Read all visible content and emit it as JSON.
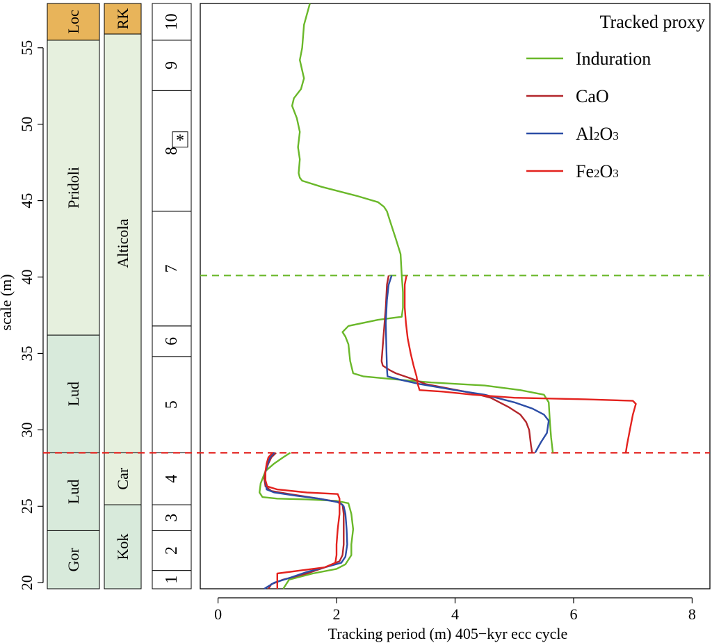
{
  "chart_data": {
    "type": "line",
    "xlabel": "Tracking period (m) 405−kyr ecc cycle",
    "ylabel": "scale (m)",
    "xlim": [
      -0.3,
      8.3
    ],
    "ylim": [
      19.6,
      57.9
    ],
    "x_ticks": [
      "0",
      "2",
      "4",
      "6",
      "8"
    ],
    "y_ticks": [
      "20",
      "25",
      "30",
      "35",
      "40",
      "45",
      "50",
      "55"
    ],
    "legend": {
      "title": "Tracked proxy",
      "placement": "top-right",
      "entries": [
        {
          "label": "Induration",
          "sub": "",
          "color": "#6ab82a"
        },
        {
          "label": "CaO",
          "sub": "",
          "color": "#b3262b"
        },
        {
          "label": "Al",
          "sub": "2",
          "label2": "O",
          "sub2": "3",
          "color": "#2c4da6"
        },
        {
          "label": "Fe",
          "sub": "2",
          "label2": "O",
          "sub2": "3",
          "color": "#e3221e"
        }
      ]
    },
    "reference_lines": [
      {
        "y": 40.1,
        "color": "#6ab82a",
        "style": "dashed"
      },
      {
        "y": 28.5,
        "color": "#e3221e",
        "style": "dashed"
      }
    ],
    "series": [
      {
        "name": "Induration",
        "color": "#6ab82a",
        "points": [
          [
            1.55,
            57.9
          ],
          [
            1.45,
            56.5
          ],
          [
            1.42,
            55.0
          ],
          [
            1.38,
            54.2
          ],
          [
            1.45,
            53.0
          ],
          [
            1.4,
            52.3
          ],
          [
            1.28,
            51.7
          ],
          [
            1.25,
            51.2
          ],
          [
            1.33,
            50.4
          ],
          [
            1.38,
            49.5
          ],
          [
            1.35,
            48.5
          ],
          [
            1.38,
            47.7
          ],
          [
            1.36,
            46.8
          ],
          [
            1.38,
            46.5
          ],
          [
            1.42,
            46.3
          ],
          [
            1.75,
            45.9
          ],
          [
            2.35,
            45.3
          ],
          [
            2.7,
            44.9
          ],
          [
            2.8,
            44.6
          ],
          [
            2.85,
            44.3
          ],
          [
            2.9,
            43.7
          ],
          [
            3.0,
            42.5
          ],
          [
            3.08,
            41.5
          ],
          [
            3.1,
            40.1
          ],
          [
            3.12,
            39.0
          ],
          [
            3.12,
            38.0
          ],
          [
            3.1,
            37.4
          ],
          [
            2.7,
            37.2
          ],
          [
            2.2,
            36.8
          ],
          [
            2.1,
            36.4
          ],
          [
            2.15,
            36.1
          ],
          [
            2.2,
            35.6
          ],
          [
            2.23,
            34.5
          ],
          [
            2.28,
            33.7
          ],
          [
            2.45,
            33.5
          ],
          [
            3.0,
            33.3
          ],
          [
            3.6,
            33.1
          ],
          [
            4.5,
            32.9
          ],
          [
            5.1,
            32.6
          ],
          [
            5.5,
            32.3
          ],
          [
            5.58,
            31.8
          ],
          [
            5.6,
            30.5
          ],
          [
            5.62,
            29.5
          ],
          [
            5.65,
            28.5
          ]
        ]
      },
      {
        "name": "Induration",
        "color": "#6ab82a",
        "points": [
          [
            1.22,
            28.5
          ],
          [
            1.1,
            28.2
          ],
          [
            0.95,
            27.8
          ],
          [
            0.8,
            27.3
          ],
          [
            0.72,
            26.5
          ],
          [
            0.7,
            25.9
          ],
          [
            0.75,
            25.6
          ],
          [
            1.0,
            25.5
          ],
          [
            1.5,
            25.45
          ],
          [
            2.0,
            25.35
          ],
          [
            2.2,
            25.2
          ],
          [
            2.25,
            24.5
          ],
          [
            2.28,
            23.5
          ],
          [
            2.25,
            22.5
          ],
          [
            2.25,
            21.8
          ],
          [
            2.15,
            21.2
          ],
          [
            2.0,
            20.9
          ],
          [
            1.6,
            20.6
          ],
          [
            1.2,
            20.2
          ],
          [
            1.1,
            19.6
          ]
        ]
      },
      {
        "name": "CaO",
        "color": "#b3262b",
        "points": [
          [
            2.88,
            40.1
          ],
          [
            2.85,
            39.5
          ],
          [
            2.83,
            38.0
          ],
          [
            2.8,
            36.5
          ],
          [
            2.78,
            35.5
          ],
          [
            2.76,
            34.5
          ],
          [
            2.78,
            34.2
          ],
          [
            2.9,
            33.9
          ],
          [
            3.0,
            33.7
          ],
          [
            3.3,
            33.3
          ],
          [
            3.5,
            33.0
          ],
          [
            3.9,
            32.7
          ],
          [
            4.3,
            32.4
          ],
          [
            4.6,
            32.1
          ],
          [
            4.9,
            31.5
          ],
          [
            5.1,
            31.0
          ],
          [
            5.2,
            30.5
          ],
          [
            5.25,
            30.0
          ],
          [
            5.28,
            29.0
          ],
          [
            5.3,
            28.5
          ]
        ]
      },
      {
        "name": "CaO",
        "color": "#b3262b",
        "points": [
          [
            0.98,
            28.5
          ],
          [
            0.9,
            28.2
          ],
          [
            0.85,
            27.8
          ],
          [
            0.8,
            27.3
          ],
          [
            0.78,
            26.8
          ],
          [
            0.8,
            26.3
          ],
          [
            0.9,
            26.0
          ],
          [
            1.2,
            25.8
          ],
          [
            1.7,
            25.5
          ],
          [
            2.0,
            25.3
          ],
          [
            2.1,
            25.1
          ],
          [
            2.12,
            24.5
          ],
          [
            2.12,
            23.5
          ],
          [
            2.12,
            22.5
          ],
          [
            2.1,
            21.8
          ],
          [
            2.05,
            21.4
          ],
          [
            1.8,
            21.0
          ],
          [
            1.5,
            20.6
          ],
          [
            1.1,
            20.2
          ],
          [
            0.9,
            19.9
          ],
          [
            0.85,
            19.6
          ]
        ]
      },
      {
        "name": "Al₂O₃",
        "color": "#2c4da6",
        "points": [
          [
            2.93,
            40.1
          ],
          [
            2.88,
            39.5
          ],
          [
            2.85,
            38.5
          ],
          [
            2.83,
            37.0
          ],
          [
            2.84,
            35.5
          ],
          [
            2.85,
            34.0
          ],
          [
            2.86,
            33.5
          ],
          [
            3.05,
            33.3
          ],
          [
            3.4,
            33.0
          ],
          [
            4.0,
            32.6
          ],
          [
            4.5,
            32.3
          ],
          [
            5.0,
            31.8
          ],
          [
            5.3,
            31.4
          ],
          [
            5.5,
            31.0
          ],
          [
            5.58,
            30.6
          ],
          [
            5.55,
            29.8
          ],
          [
            5.45,
            29.2
          ],
          [
            5.35,
            28.5
          ]
        ]
      },
      {
        "name": "Al₂O₃",
        "color": "#2c4da6",
        "points": [
          [
            0.95,
            28.5
          ],
          [
            0.88,
            28.2
          ],
          [
            0.83,
            27.7
          ],
          [
            0.8,
            27.2
          ],
          [
            0.8,
            26.6
          ],
          [
            0.82,
            26.1
          ],
          [
            0.95,
            25.9
          ],
          [
            1.3,
            25.7
          ],
          [
            1.7,
            25.5
          ],
          [
            2.05,
            25.25
          ],
          [
            2.12,
            25.0
          ],
          [
            2.15,
            24.5
          ],
          [
            2.17,
            23.5
          ],
          [
            2.18,
            22.5
          ],
          [
            2.15,
            21.7
          ],
          [
            2.08,
            21.3
          ],
          [
            1.8,
            21.0
          ],
          [
            1.5,
            20.7
          ],
          [
            1.2,
            20.3
          ],
          [
            0.95,
            20.0
          ],
          [
            0.78,
            19.6
          ]
        ]
      },
      {
        "name": "Fe₂O₃",
        "color": "#e3221e",
        "points": [
          [
            3.18,
            40.1
          ],
          [
            3.15,
            39.5
          ],
          [
            3.15,
            38.0
          ],
          [
            3.17,
            37.0
          ],
          [
            3.2,
            36.0
          ],
          [
            3.25,
            35.0
          ],
          [
            3.3,
            34.2
          ],
          [
            3.35,
            33.5
          ],
          [
            3.37,
            33.0
          ],
          [
            3.4,
            32.6
          ],
          [
            3.8,
            32.5
          ],
          [
            4.3,
            32.3
          ],
          [
            5.0,
            32.1
          ],
          [
            6.2,
            32.0
          ],
          [
            7.0,
            31.9
          ],
          [
            7.05,
            31.7
          ],
          [
            7.0,
            31.0
          ],
          [
            6.95,
            30.0
          ],
          [
            6.9,
            29.0
          ],
          [
            6.88,
            28.5
          ]
        ]
      },
      {
        "name": "Fe₂O₃",
        "color": "#e3221e",
        "points": [
          [
            0.92,
            28.5
          ],
          [
            0.85,
            28.2
          ],
          [
            0.82,
            27.8
          ],
          [
            0.8,
            27.3
          ],
          [
            0.8,
            26.7
          ],
          [
            0.83,
            26.3
          ],
          [
            1.0,
            26.1
          ],
          [
            1.5,
            25.9
          ],
          [
            2.02,
            25.8
          ],
          [
            2.05,
            25.5
          ],
          [
            2.05,
            24.5
          ],
          [
            2.02,
            23.5
          ],
          [
            2.0,
            22.5
          ],
          [
            2.0,
            21.8
          ],
          [
            1.98,
            21.3
          ],
          [
            1.8,
            21.0
          ],
          [
            1.4,
            20.8
          ],
          [
            1.0,
            20.6
          ],
          [
            1.0,
            20.3
          ],
          [
            1.0,
            19.6
          ]
        ]
      }
    ]
  },
  "strat_columns": [
    {
      "name": "series",
      "units": [
        {
          "label": "Gor",
          "bottom": 19.6,
          "top": 23.4,
          "color": "#d8eadb"
        },
        {
          "label": "Lud",
          "bottom": 23.4,
          "top": 28.5,
          "color": "#d8eadb"
        },
        {
          "label": "Lud",
          "bottom": 28.5,
          "top": 36.2,
          "color": "#d8eadb"
        },
        {
          "label": "Pridoli",
          "bottom": 36.2,
          "top": 55.5,
          "color": "#e6f0de"
        },
        {
          "label": "Loc",
          "bottom": 55.5,
          "top": 57.9,
          "color": "#e8b45a"
        }
      ]
    },
    {
      "name": "biozone",
      "units": [
        {
          "label": "Kok",
          "bottom": 19.6,
          "top": 25.1,
          "color": "#d8eadb"
        },
        {
          "label": "Car",
          "bottom": 25.1,
          "top": 28.5,
          "color": "#e6f0de"
        },
        {
          "label": "Alticola",
          "bottom": 28.5,
          "top": 55.9,
          "color": "#e6f0de"
        },
        {
          "label": "RK",
          "bottom": 55.9,
          "top": 57.9,
          "color": "#e8b45a"
        }
      ]
    },
    {
      "name": "cycles",
      "units": [
        {
          "label": "1",
          "bottom": 19.6,
          "top": 20.8,
          "color": "#ffffff"
        },
        {
          "label": "2",
          "bottom": 20.8,
          "top": 23.4,
          "color": "#ffffff"
        },
        {
          "label": "3",
          "bottom": 23.4,
          "top": 25.1,
          "color": "#ffffff"
        },
        {
          "label": "4",
          "bottom": 25.1,
          "top": 28.5,
          "color": "#ffffff"
        },
        {
          "label": "5",
          "bottom": 28.5,
          "top": 34.8,
          "color": "#ffffff"
        },
        {
          "label": "6",
          "bottom": 34.8,
          "top": 36.8,
          "color": "#ffffff"
        },
        {
          "label": "7",
          "bottom": 36.8,
          "top": 44.3,
          "color": "#ffffff"
        },
        {
          "label": "8",
          "bottom": 44.3,
          "top": 52.2,
          "color": "#ffffff"
        },
        {
          "label": "9",
          "bottom": 52.2,
          "top": 55.5,
          "color": "#ffffff"
        },
        {
          "label": "10",
          "bottom": 55.5,
          "top": 57.9,
          "color": "#ffffff"
        }
      ],
      "marker": {
        "label": "*",
        "y": 49.0
      }
    }
  ]
}
